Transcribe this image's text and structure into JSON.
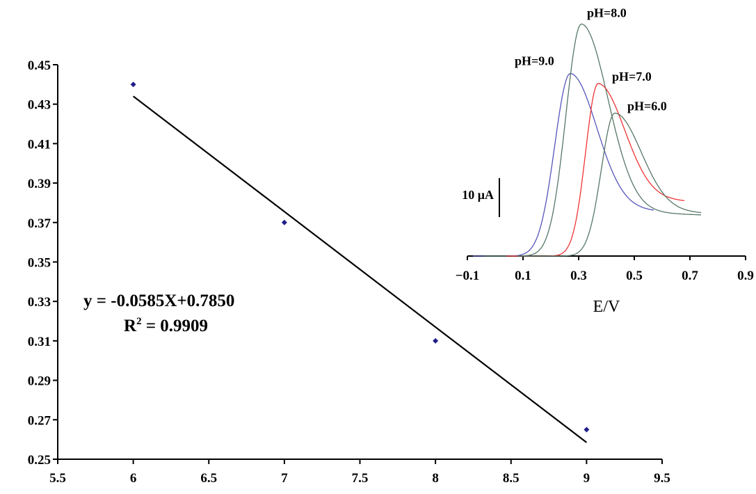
{
  "chart_data": [
    {
      "type": "scatter",
      "title": "",
      "xlabel": "",
      "ylabel": "",
      "xlim": [
        5.5,
        9.5
      ],
      "ylim": [
        0.25,
        0.45
      ],
      "x_ticks": [
        "5.5",
        "6",
        "6.5",
        "7",
        "7.5",
        "8",
        "8.5",
        "9",
        "9.5"
      ],
      "y_ticks": [
        "0.25",
        "0.27",
        "0.29",
        "0.31",
        "0.33",
        "0.35",
        "0.37",
        "0.39",
        "0.41",
        "0.43",
        "0.45"
      ],
      "grid": false,
      "points": [
        {
          "x": 6,
          "y": 0.44
        },
        {
          "x": 7,
          "y": 0.37
        },
        {
          "x": 8,
          "y": 0.31
        },
        {
          "x": 9,
          "y": 0.265
        }
      ],
      "trendline": {
        "slope": -0.0585,
        "intercept": 0.785,
        "x_range": [
          6,
          9
        ]
      },
      "colors": {
        "points": "#1f1f8a",
        "trendline": "#000000"
      },
      "annotations": {
        "equation": "y = -0.0585X+0.7850",
        "r2_prefix": "R",
        "r2_sup": "2",
        "r2_value": " = 0.9909"
      }
    },
    {
      "type": "line",
      "title": "",
      "xlabel": "E/V",
      "ylabel": "",
      "xlim": [
        -0.1,
        0.9
      ],
      "x_ticks": [
        "-0.1",
        "0.1",
        "0.3",
        "0.5",
        "0.7",
        "0.9"
      ],
      "scale_bar_label": "10 μA",
      "series": [
        {
          "name": "pH=9.0",
          "color": "#5555bb",
          "x_start": -0.08,
          "x_end": 0.57,
          "baseline": 0,
          "peak_x": 0.27,
          "peak_height": 38.3,
          "end_height": 10.2,
          "rise_width": 0.075
        },
        {
          "name": "pH=8.0",
          "color": "#557766",
          "x_start": -0.04,
          "x_end": 0.74,
          "baseline": 0,
          "peak_x": 0.31,
          "peak_height": 48.7,
          "end_height": 9.7,
          "rise_width": 0.075
        },
        {
          "name": "pH=7.0",
          "color": "#ee3333",
          "x_start": 0.04,
          "x_end": 0.68,
          "baseline": 0,
          "peak_x": 0.37,
          "peak_height": 36.2,
          "end_height": 12.3,
          "rise_width": 0.06
        },
        {
          "name": "pH=6.0",
          "color": "#557766",
          "x_start": 0.08,
          "x_end": 0.74,
          "baseline": 0,
          "peak_x": 0.43,
          "peak_height": 30.0,
          "end_height": 9.8,
          "rise_width": 0.065
        }
      ],
      "label_colors": {
        "text": "#000000"
      }
    }
  ]
}
